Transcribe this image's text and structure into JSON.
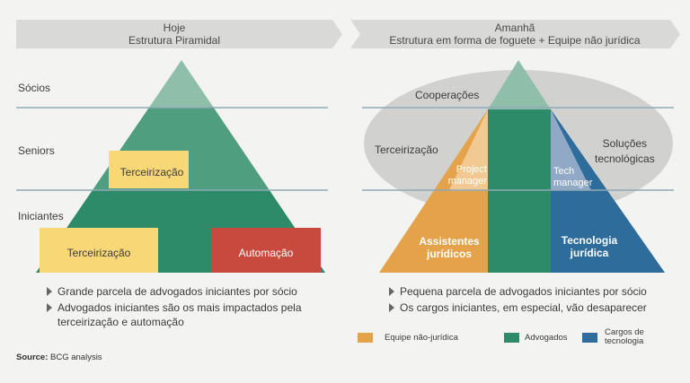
{
  "colors": {
    "banner": "#d9d9d7",
    "pyramid_green": "#2e8b6a",
    "pyramid_light": "#8fbfaa",
    "yellow": "#f8d777",
    "red": "#c84a3f",
    "orange": "#e4a24a",
    "blue": "#2e6c9c",
    "ellipse": "#d1d1cf",
    "line": "#8fa9b8"
  },
  "left": {
    "banner_line1": "Hoje",
    "banner_line2": "Estrutura Piramidal",
    "levels": [
      "Sócios",
      "Seniors",
      "Iniciantes"
    ],
    "box_mid": "Terceirização",
    "box_low_left": "Terceirização",
    "box_low_right": "Automação",
    "bullets": [
      "Grande parcela de advogados iniciantes por sócio",
      "Advogados iniciantes são os mais impactados pela terceirização e automação"
    ]
  },
  "right": {
    "banner_line1": "Amanhã",
    "banner_line2": "Estrutura em forma de foguete + Equipe não jurídica",
    "cooperacoes": "Cooperações",
    "terceirizacao": "Terceirização",
    "solucoes_1": "Soluções",
    "solucoes_2": "tecnológicas",
    "project_manager_1": "Project",
    "project_manager_2": "manager",
    "tech_manager_1": "Tech",
    "tech_manager_2": "manager",
    "assistentes_1": "Assistentes",
    "assistentes_2": "jurídicos",
    "tecnologia_1": "Tecnologia",
    "tecnologia_2": "jurídica",
    "bullets": [
      "Pequena parcela de advogados iniciantes por sócio",
      "Os cargos iniciantes, em especial, vão desaparecer"
    ],
    "legend": [
      {
        "label": "Equipe não-jurídica",
        "color": "#e4a24a"
      },
      {
        "label": "Advogados",
        "color": "#2e8b6a"
      },
      {
        "label": "Cargos de tecnologia",
        "color": "#2e6c9c"
      }
    ]
  },
  "source_label": "Source:",
  "source_text": " BCG analysis"
}
